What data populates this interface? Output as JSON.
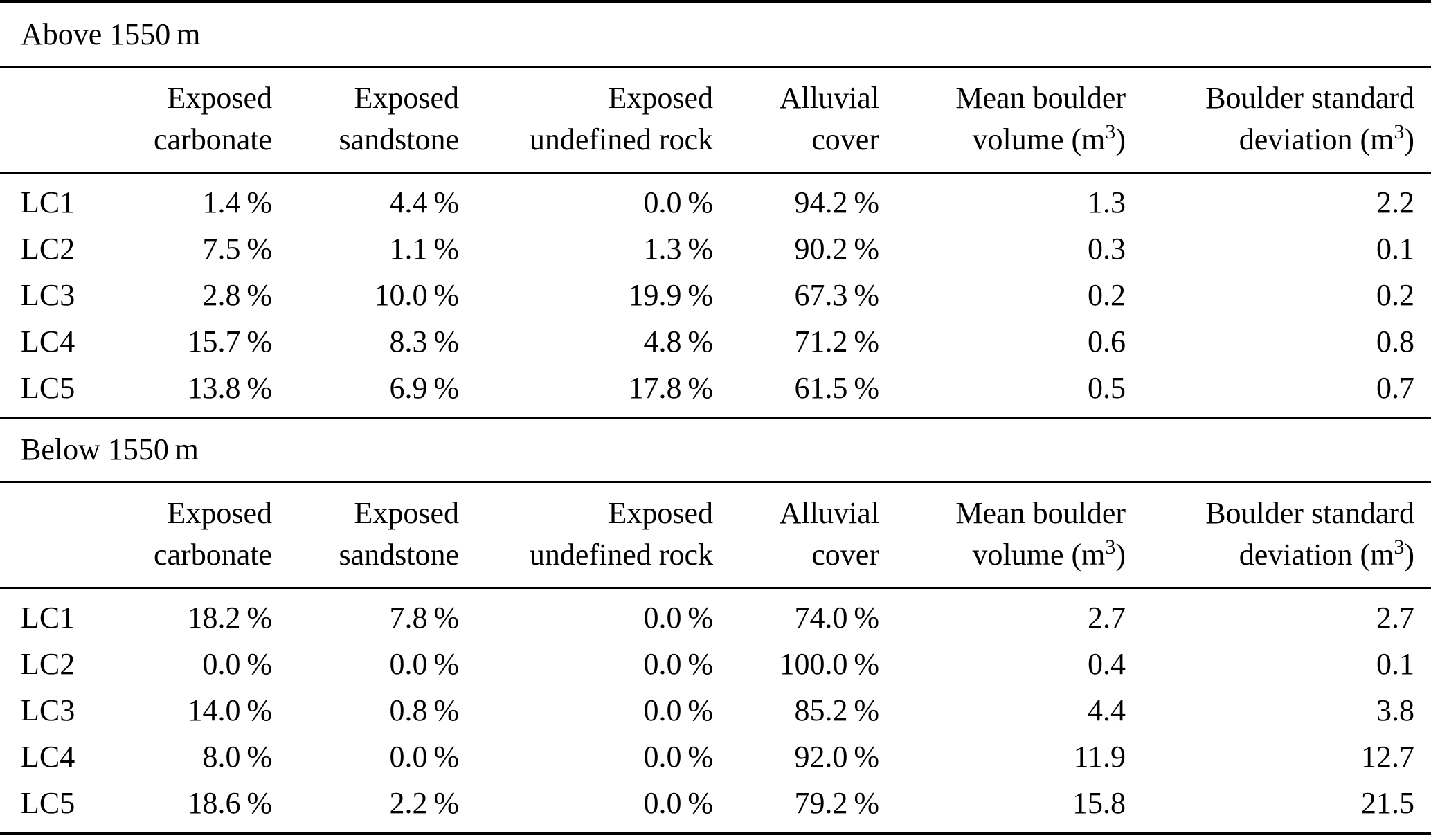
{
  "colors": {
    "text": "#000000",
    "background": "#ffffff",
    "rules": "#000000"
  },
  "table": {
    "columns": [
      {
        "line1": "Exposed",
        "line2": "carbonate",
        "sup": "",
        "tail": ""
      },
      {
        "line1": "Exposed",
        "line2": "sandstone",
        "sup": "",
        "tail": ""
      },
      {
        "line1": "Exposed",
        "line2": "undefined rock",
        "sup": "",
        "tail": ""
      },
      {
        "line1": "Alluvial",
        "line2": "cover",
        "sup": "",
        "tail": ""
      },
      {
        "line1": "Mean boulder",
        "line2": "volume (m",
        "sup": "3",
        "tail": ")"
      },
      {
        "line1": "Boulder standard",
        "line2": "deviation (m",
        "sup": "3",
        "tail": ")"
      }
    ],
    "sections": [
      {
        "title": "Above 1550 m",
        "rows": [
          {
            "label": "LC1",
            "values": [
              "1.4 %",
              "4.4 %",
              "0.0 %",
              "94.2 %",
              "1.3",
              "2.2"
            ]
          },
          {
            "label": "LC2",
            "values": [
              "7.5 %",
              "1.1 %",
              "1.3 %",
              "90.2 %",
              "0.3",
              "0.1"
            ]
          },
          {
            "label": "LC3",
            "values": [
              "2.8 %",
              "10.0 %",
              "19.9 %",
              "67.3 %",
              "0.2",
              "0.2"
            ]
          },
          {
            "label": "LC4",
            "values": [
              "15.7 %",
              "8.3 %",
              "4.8 %",
              "71.2 %",
              "0.6",
              "0.8"
            ]
          },
          {
            "label": "LC5",
            "values": [
              "13.8 %",
              "6.9 %",
              "17.8 %",
              "61.5 %",
              "0.5",
              "0.7"
            ]
          }
        ]
      },
      {
        "title": "Below 1550 m",
        "rows": [
          {
            "label": "LC1",
            "values": [
              "18.2 %",
              "7.8 %",
              "0.0 %",
              "74.0 %",
              "2.7",
              "2.7"
            ]
          },
          {
            "label": "LC2",
            "values": [
              "0.0 %",
              "0.0 %",
              "0.0 %",
              "100.0 %",
              "0.4",
              "0.1"
            ]
          },
          {
            "label": "LC3",
            "values": [
              "14.0 %",
              "0.8 %",
              "0.0 %",
              "85.2 %",
              "4.4",
              "3.8"
            ]
          },
          {
            "label": "LC4",
            "values": [
              "8.0 %",
              "0.0 %",
              "0.0 %",
              "92.0 %",
              "11.9",
              "12.7"
            ]
          },
          {
            "label": "LC5",
            "values": [
              "18.6 %",
              "2.2 %",
              "0.0 %",
              "79.2 %",
              "15.8",
              "21.5"
            ]
          }
        ]
      }
    ]
  }
}
